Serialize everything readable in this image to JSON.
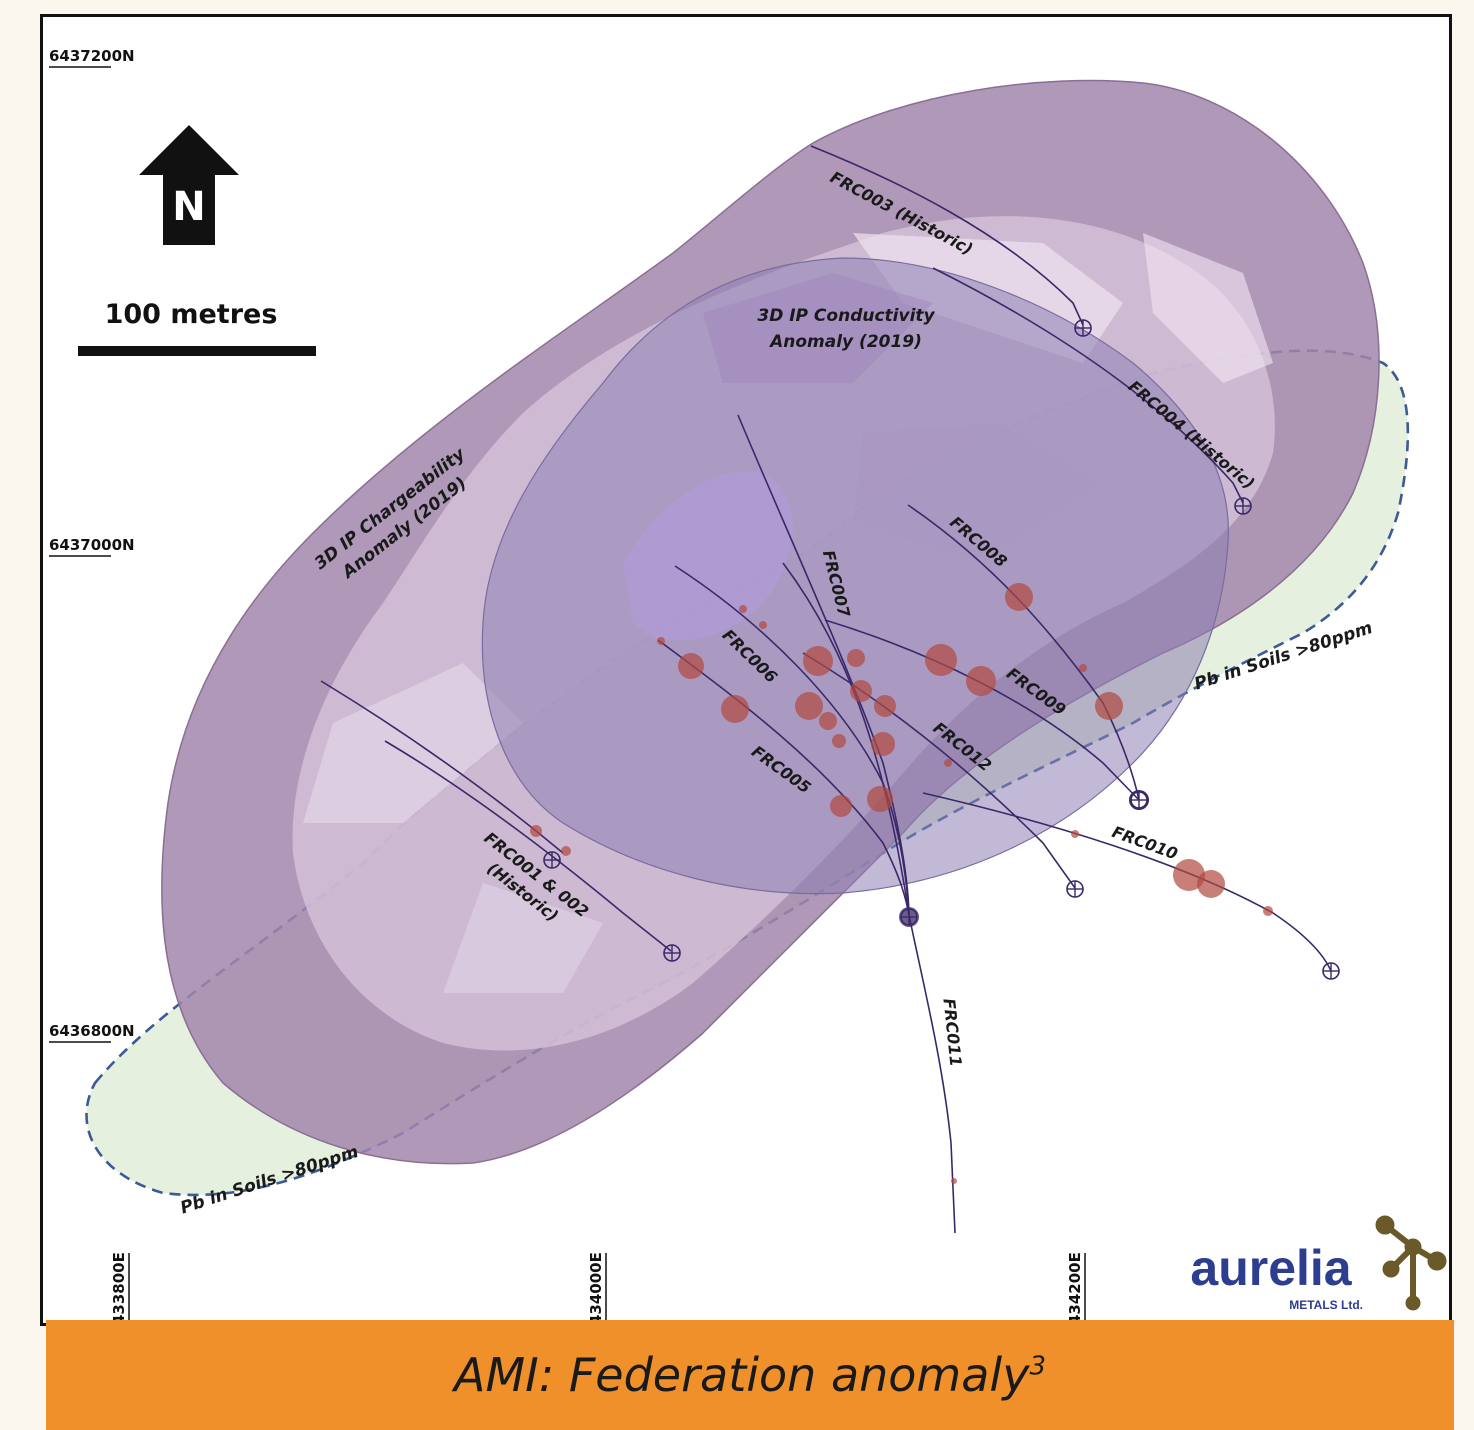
{
  "coords": {
    "northing": [
      "6437200N",
      "6437000N",
      "6436800N"
    ],
    "easting": [
      "433800E",
      "434000E",
      "434200E"
    ]
  },
  "north_arrow": {
    "letter": "N"
  },
  "scale_bar": {
    "label": "100 metres"
  },
  "anomalies": {
    "chargeability": [
      "3D IP Chargeability",
      "Anomaly (2019)"
    ],
    "conductivity": [
      "3D IP Conductivity",
      "Anomaly (2019)"
    ],
    "pb_soils": "Pb in Soils >80ppm"
  },
  "drillholes": {
    "frc001_002": [
      "FRC001 & 002",
      "(Historic)"
    ],
    "frc003": "FRC003 (Historic)",
    "frc004": "FRC004 (Historic)",
    "frc005": "FRC005",
    "frc006": "FRC006",
    "frc007": "FRC007",
    "frc008": "FRC008",
    "frc009": "FRC009",
    "frc010": "FRC010",
    "frc011": "FRC011",
    "frc012": "FRC012"
  },
  "logo": {
    "name": "aurelia",
    "sub": "METALS Ltd."
  },
  "banner": {
    "title": "AMI: Federation anomaly",
    "sup": "3"
  },
  "colors": {
    "chargeability": "#9c7ba2",
    "conductivity": "#8a7bb0",
    "pb_soils_fill": "#e8f0df",
    "pb_soils_line": "#3a5a98",
    "drill_trace": "#3a2868",
    "intercept": "#b0483f",
    "banner": "#f0902a",
    "logo_text": "#2d3d8f",
    "logo_mark": "#6a5a2a"
  }
}
